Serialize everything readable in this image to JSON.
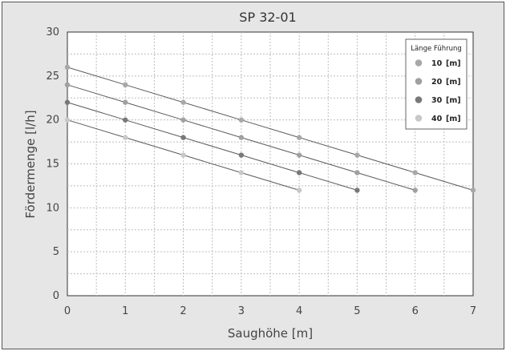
{
  "chart_data": {
    "type": "line",
    "title": "SP 32-01",
    "xlabel": "Saughöhe [m]",
    "ylabel": "Fördermenge [l/h]",
    "xlim": [
      0,
      7
    ],
    "ylim": [
      0,
      30
    ],
    "x_ticks": [
      0,
      1,
      2,
      3,
      4,
      5,
      6,
      7
    ],
    "y_ticks": [
      0,
      5,
      10,
      15,
      20,
      25,
      30
    ],
    "grid": true,
    "legend_title": "Länge Führung",
    "legend_position": "top-right",
    "series": [
      {
        "name": "10 [m]",
        "label": "10",
        "unit": "[m]",
        "color": "#a8a8a8",
        "x": [
          0,
          1,
          2,
          3,
          4,
          5,
          6,
          7
        ],
        "values": [
          26,
          24,
          22,
          20,
          18,
          16,
          14,
          12
        ]
      },
      {
        "name": "20 [m]",
        "label": "20",
        "unit": "[m]",
        "color": "#a0a0a0",
        "x": [
          0,
          1,
          2,
          3,
          4,
          5,
          6
        ],
        "values": [
          24,
          22,
          20,
          18,
          16,
          14,
          12
        ]
      },
      {
        "name": "30 [m]",
        "label": "30",
        "unit": "[m]",
        "color": "#787878",
        "x": [
          0,
          1,
          2,
          3,
          4,
          5
        ],
        "values": [
          22,
          20,
          18,
          16,
          14,
          12
        ]
      },
      {
        "name": "40 [m]",
        "label": "40",
        "unit": "[m]",
        "color": "#c8c8c8",
        "x": [
          0,
          1,
          2,
          3,
          4
        ],
        "values": [
          20,
          18,
          16,
          14,
          12
        ]
      }
    ]
  }
}
